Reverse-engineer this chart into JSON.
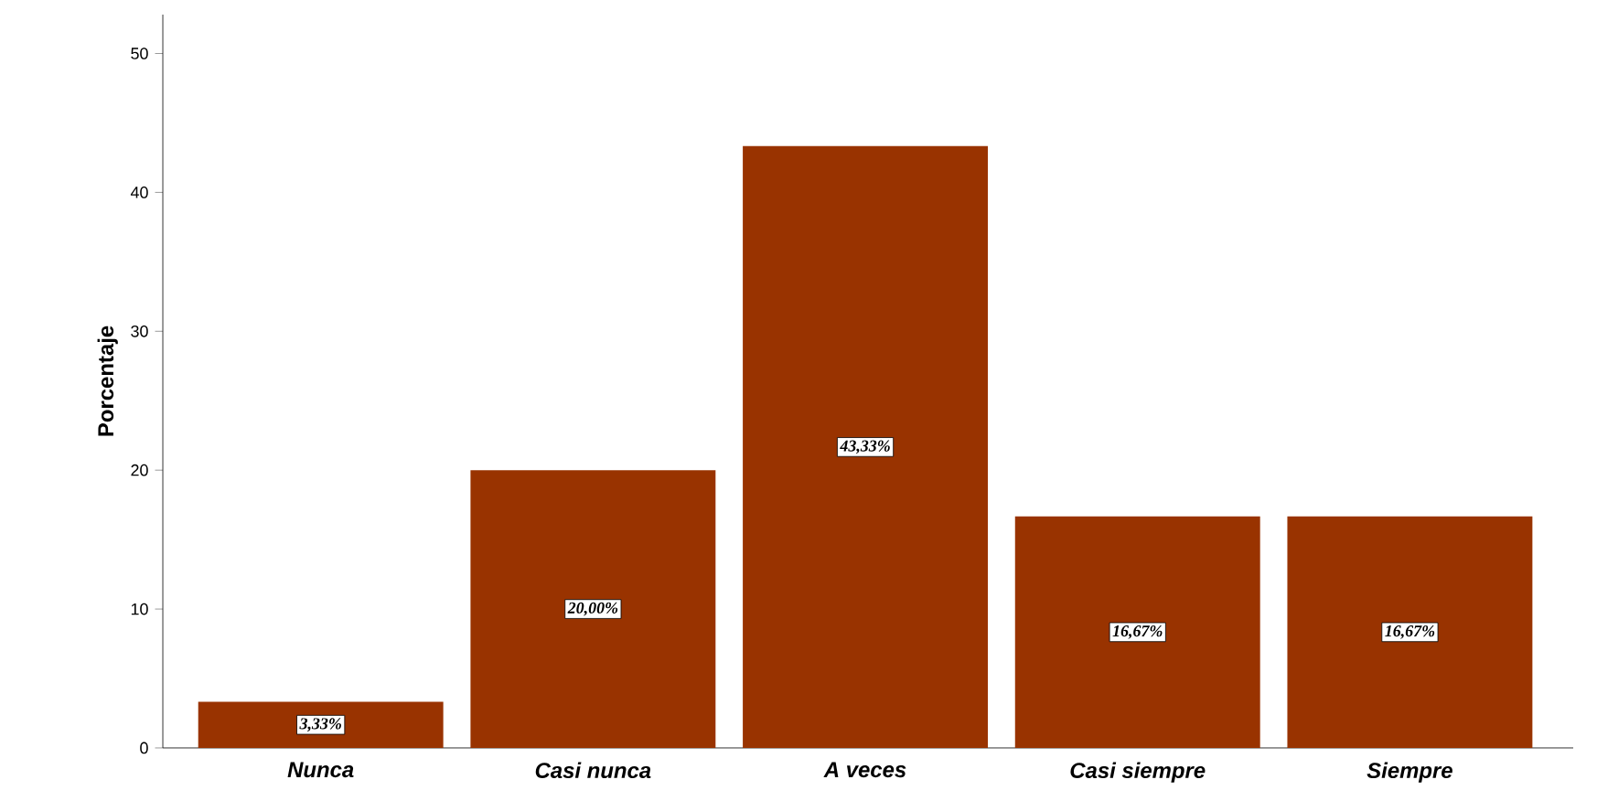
{
  "chart_data": {
    "type": "bar",
    "ylabel": "Porcentaje",
    "categories": [
      "Nunca",
      "Casi nunca",
      "A veces",
      "Casi siempre",
      "Siempre"
    ],
    "values": [
      3.33,
      20.0,
      43.33,
      16.67,
      16.67
    ],
    "value_labels": [
      "3,33%",
      "20,00%",
      "43,33%",
      "16,67%",
      "16,67%"
    ],
    "color": "#993300",
    "ylim": [
      0,
      52.8
    ],
    "yticks": [
      0,
      10,
      20,
      30,
      40,
      50
    ],
    "grid": false
  }
}
